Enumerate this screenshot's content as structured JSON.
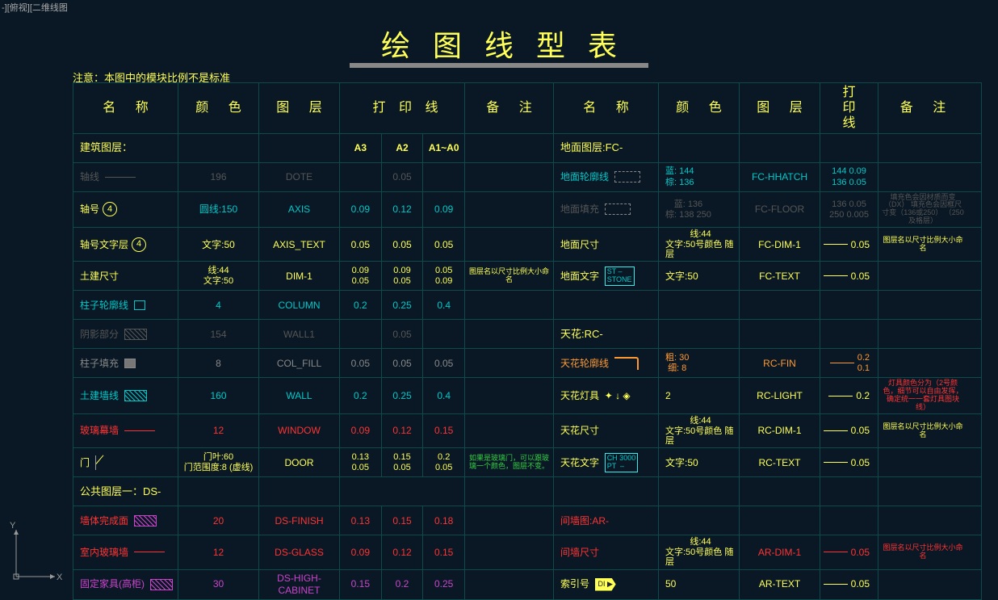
{
  "app": {
    "tab": "-][俯视][二维线图"
  },
  "title": "绘图线型表",
  "note": "注意：本图中的模块比例不是标准",
  "headers": {
    "name": "名 称",
    "color": "颜 色",
    "layer": "图 层",
    "print": "打 印 线",
    "remark": "备 注"
  },
  "printSub": {
    "a3": "A3",
    "a2": "A2",
    "a10": "A1~A0"
  },
  "sections": {
    "buildLayer": "建筑图层：",
    "floorLayer": "地面图层:FC-",
    "ceiling": "天花:RC-",
    "publicLayer": "公共图层一：DS-",
    "partition": "间墙图:AR-"
  },
  "left": [
    {
      "name": "轴线",
      "nameColor": "dimgrey",
      "sample": "line",
      "color": "196",
      "colorCls": "dimgrey",
      "layer": "DOTE",
      "layerCls": "dimgrey",
      "p": [
        "",
        "0.05",
        ""
      ],
      "pCls": "dimgrey"
    },
    {
      "name": "轴号",
      "nameColor": "yellow",
      "circ": "4",
      "color": "圆线:150",
      "colorCls": "cyan",
      "layer": "AXIS",
      "layerCls": "cyan",
      "p": [
        "0.09",
        "0.12",
        "0.09"
      ],
      "pCls": "cyan"
    },
    {
      "name": "轴号文字层",
      "nameColor": "yellow",
      "circ": "4",
      "color": "文字:50",
      "colorCls": "yellow",
      "layer": "AXIS_TEXT",
      "layerCls": "yellow",
      "p": [
        "0.05",
        "0.05",
        "0.05"
      ],
      "pCls": "yellow"
    },
    {
      "name": "土建尺寸",
      "nameColor": "yellow",
      "sample": "",
      "color": "线:44\n文字:50",
      "colorCls": "yellow",
      "layer": "DIM-1",
      "layerCls": "yellow",
      "p": [
        "0.09\n0.05",
        "0.09\n0.05",
        "0.05\n0.09"
      ],
      "pCls": "yellow",
      "note": "图层名以尺寸比例大小命名",
      "noteCls": "yellow tiny"
    },
    {
      "name": "柱子轮廓线",
      "nameColor": "cyan",
      "sample": "box",
      "sampleCls": "cyan",
      "color": "4",
      "colorCls": "cyan",
      "layer": "COLUMN",
      "layerCls": "cyan",
      "p": [
        "0.2",
        "0.25",
        "0.4"
      ],
      "pCls": "cyan"
    },
    {
      "name": "阴影部分",
      "nameColor": "dimgrey",
      "sample": "hatch",
      "sampleCls": "dimgrey",
      "color": "154",
      "colorCls": "dimgrey",
      "layer": "WALL1",
      "layerCls": "dimgrey",
      "p": [
        "",
        "0.05",
        ""
      ],
      "pCls": "dimgrey"
    },
    {
      "name": "柱子填充",
      "nameColor": "grey",
      "sample": "fill",
      "color": "8",
      "colorCls": "grey",
      "layer": "COL_FILL",
      "layerCls": "grey",
      "p": [
        "0.05",
        "0.05",
        "0.05"
      ],
      "pCls": "grey"
    },
    {
      "name": "土建墙线",
      "nameColor": "cyan",
      "sample": "hatch",
      "sampleCls": "cyan",
      "color": "160",
      "colorCls": "cyan",
      "layer": "WALL",
      "layerCls": "cyan",
      "p": [
        "0.2",
        "0.25",
        "0.4"
      ],
      "pCls": "cyan"
    },
    {
      "name": "玻璃幕墙",
      "nameColor": "red",
      "sample": "line",
      "sampleCls": "red",
      "color": "12",
      "colorCls": "red",
      "layer": "WINDOW",
      "layerCls": "red",
      "p": [
        "0.09",
        "0.12",
        "0.15"
      ],
      "pCls": "red"
    },
    {
      "name": "门",
      "nameColor": "yellow",
      "sample": "door",
      "color": "门叶:60\n门范围度:8  (虚线)",
      "colorCls": "yellow",
      "layer": "DOOR",
      "layerCls": "yellow",
      "p": [
        "0.13\n0.05",
        "0.15\n0.05",
        "0.2\n0.05"
      ],
      "pCls": "yellow",
      "note": "如果是玻璃门，可以跟玻璃一个颜色，图层不变。",
      "noteCls": "green tiny"
    }
  ],
  "rightFloor": [
    {
      "name": "地面轮廓线",
      "nameColor": "cyan",
      "sample": "rect-dash",
      "color": "蓝: 144\n棕: 136",
      "colorCls": "cyan",
      "layer": "FC-HHATCH",
      "layerCls": "cyan",
      "p": "144  0.09\n136  0.05",
      "pCls": "cyan"
    },
    {
      "name": "地面填充",
      "nameColor": "dimgrey",
      "sample": "rect-dash",
      "color": "蓝: 136\n棕: 138 250",
      "colorCls": "dimgrey",
      "layer": "FC-FLOOR",
      "layerCls": "dimgrey",
      "p": "136  0.05\n250  0.005",
      "pCls": "dimgrey",
      "note": "填充色会因材质而变（DX）\n填充色会因框尺寸变（136或250）\n（250 及格层）",
      "noteCls": "dimgrey tiny"
    },
    {
      "name": "地面尺寸",
      "nameColor": "yellow",
      "sample": "",
      "color": "线:44\n文字:50号颜色 随层",
      "colorCls": "yellow",
      "layer": "FC-DIM-1",
      "layerCls": "yellow",
      "p": "0.05",
      "pCls": "yellow",
      "pline": true,
      "note": "图层名以尺寸比例大小命名",
      "noteCls": "yellow tiny"
    },
    {
      "name": "地面文字",
      "nameColor": "yellow",
      "sample": "tag",
      "tag": "ST –\nSTONE",
      "color": "文字:50",
      "colorCls": "yellow",
      "layer": "FC-TEXT",
      "layerCls": "yellow",
      "p": "0.05",
      "pCls": "yellow",
      "pline": true
    }
  ],
  "rightCeil": [
    {
      "name": "天花轮廓线",
      "nameColor": "orange",
      "sample": "rc",
      "color": "粗: 30\n细:  8",
      "colorCls": "orange",
      "layer": "RC-FIN",
      "layerCls": "orange",
      "p": "0.2\n0.1",
      "pline": true,
      "pCls": "orange"
    },
    {
      "name": "天花灯具",
      "nameColor": "yellow",
      "sample": "sym",
      "color": "2",
      "colorCls": "yellow",
      "layer": "RC-LIGHT",
      "layerCls": "yellow",
      "p": "0.2",
      "pline": true,
      "pCls": "yellow",
      "note": "灯具颜色分为（2号颜色，细节可以自由发挥，确定统一一套灯具图块线）",
      "noteCls": "red tiny"
    },
    {
      "name": "天花尺寸",
      "nameColor": "yellow",
      "sample": "",
      "color": "线:44\n文字:50号颜色 随层",
      "colorCls": "yellow",
      "layer": "RC-DIM-1",
      "layerCls": "yellow",
      "p": "0.05",
      "pline": true,
      "pCls": "yellow",
      "note": "图层名以尺寸比例大小命名",
      "noteCls": "yellow tiny"
    },
    {
      "name": "天花文字",
      "nameColor": "yellow",
      "sample": "tag",
      "tag": "CH 3000\nPT  –",
      "color": "文字:50",
      "colorCls": "yellow",
      "layer": "RC-TEXT",
      "layerCls": "yellow",
      "p": "0.05",
      "pline": true,
      "pCls": "yellow"
    }
  ],
  "leftDS": [
    {
      "name": "墙体完成面",
      "nameColor": "red",
      "sample": "hatch",
      "sampleCls": "magenta",
      "color": "20",
      "colorCls": "red",
      "layer": "DS-FINISH",
      "layerCls": "red",
      "p": [
        "0.13",
        "0.15",
        "0.18"
      ],
      "pCls": "red"
    },
    {
      "name": "室内玻璃墙",
      "nameColor": "red",
      "sample": "line",
      "sampleCls": "red",
      "color": "12",
      "colorCls": "red",
      "layer": "DS-GLASS",
      "layerCls": "red",
      "p": [
        "0.09",
        "0.12",
        "0.15"
      ],
      "pCls": "red"
    },
    {
      "name": "固定家具(高柜)",
      "nameColor": "magenta",
      "sample": "hatch",
      "sampleCls": "magenta",
      "color": "30",
      "colorCls": "magenta",
      "layer": "DS-HIGH-CABINET",
      "layerCls": "magenta",
      "p": [
        "0.15",
        "0.2",
        "0.25"
      ],
      "pCls": "magenta"
    }
  ],
  "rightAR": [
    {
      "name": "间墙尺寸",
      "nameColor": "red",
      "sample": "",
      "color": "线:44\n文字:50号颜色 随层",
      "colorCls": "yellow",
      "layer": "AR-DIM-1",
      "layerCls": "red",
      "p": "0.05",
      "pline": true,
      "pCls": "red",
      "note": "图层名以尺寸比例大小命名",
      "noteCls": "red tiny"
    },
    {
      "name": "索引号",
      "nameColor": "yellow",
      "sample": "arrow",
      "tag": "DI\n▶",
      "color": "50",
      "colorCls": "yellow",
      "layer": "AR-TEXT",
      "layerCls": "yellow",
      "p": "0.05",
      "pline": true,
      "pCls": "yellow"
    }
  ]
}
